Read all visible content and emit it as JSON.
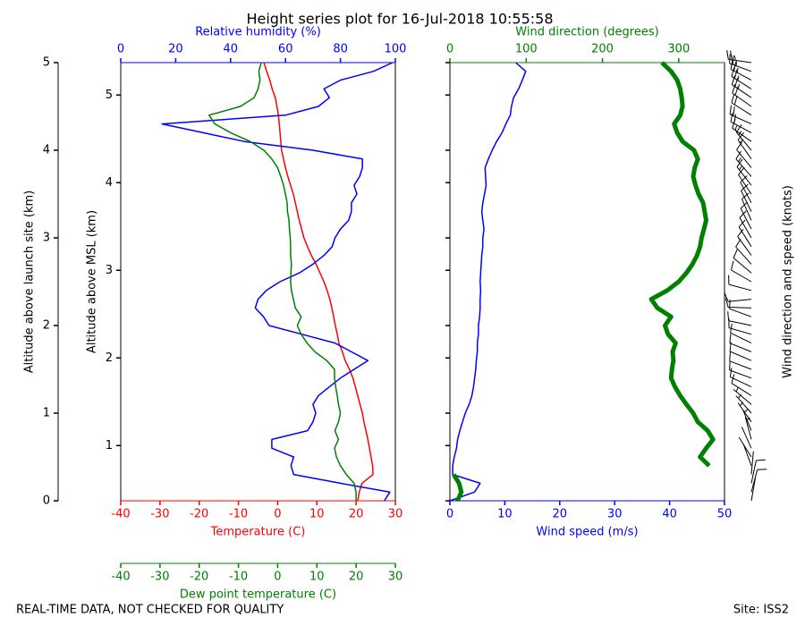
{
  "page": {
    "title": "Height series plot for 16-Jul-2018 10:55:58",
    "footer_left": "REAL-TIME DATA, NOT CHECKED FOR QUALITY",
    "footer_right": "Site: ISS2"
  },
  "chart_data": [
    {
      "type": "line",
      "y_label": "Altitude above launch site (km)",
      "ylim": [
        0,
        5
      ],
      "yticks": [
        0,
        1,
        2,
        3,
        4,
        5
      ],
      "y2_label": "Altitude above MSL (km)",
      "y2lim": [
        0.37,
        5.37
      ],
      "y2ticks": [
        1,
        2,
        3,
        4,
        5
      ],
      "x_label": "Temperature (C)",
      "xlim": [
        -40,
        30
      ],
      "xticks": [
        -40,
        -30,
        -20,
        -10,
        0,
        10,
        20,
        30
      ],
      "x2_label": "Relative humidity (%)",
      "x2lim": [
        0,
        100
      ],
      "x2ticks": [
        0,
        20,
        40,
        60,
        80,
        100
      ],
      "x3_label": "Dew point temperature (C)",
      "x3lim": [
        -40,
        30
      ],
      "x3ticks": [
        -40,
        -30,
        -20,
        -10,
        0,
        10,
        20,
        30
      ],
      "altitude": [
        0,
        0.1,
        0.2,
        0.3,
        0.4,
        0.5,
        0.6,
        0.7,
        0.8,
        0.9,
        1.0,
        1.1,
        1.2,
        1.3,
        1.4,
        1.5,
        1.6,
        1.7,
        1.8,
        1.9,
        2.0,
        2.1,
        2.2,
        2.3,
        2.4,
        2.5,
        2.6,
        2.7,
        2.8,
        2.9,
        3.0,
        3.1,
        3.2,
        3.3,
        3.4,
        3.5,
        3.6,
        3.7,
        3.8,
        3.9,
        4.0,
        4.1,
        4.2,
        4.3,
        4.4,
        4.5,
        4.6,
        4.7,
        4.8,
        4.9,
        5.0
      ],
      "series": [
        {
          "axis": "x",
          "color": "#ff0000",
          "values": [
            20.4,
            20.8,
            21.5,
            24.3,
            24.2,
            23.8,
            23.4,
            23,
            22.5,
            22,
            21.6,
            21,
            20.4,
            19.8,
            19.2,
            18.3,
            17.2,
            16.5,
            15.6,
            15.2,
            14.7,
            14.3,
            13.8,
            13.3,
            12.6,
            11.8,
            10.8,
            9.8,
            8.6,
            7.6,
            6.7,
            6.1,
            5.5,
            5,
            4.5,
            4,
            3.3,
            2.6,
            2,
            1.5,
            1,
            0.8,
            0.6,
            0.4,
            0.2,
            -0.2,
            -0.6,
            -1.4,
            -2,
            -2.8,
            -3.5
          ]
        },
        {
          "axis": "x2",
          "color": "#0000ff",
          "values": [
            96,
            98,
            80,
            63,
            62,
            63,
            55,
            55,
            68,
            70,
            71,
            70,
            72,
            76,
            80,
            85,
            90,
            84,
            78,
            66,
            54,
            52,
            49,
            50,
            53,
            58,
            65,
            70,
            74,
            77,
            78,
            80,
            83,
            84,
            84,
            86,
            85,
            87,
            88,
            88,
            70,
            45,
            30,
            15,
            60,
            72,
            76,
            74,
            80,
            92,
            99
          ]
        },
        {
          "axis": "x3",
          "color": "#008000",
          "values": [
            20,
            20,
            19.5,
            17.5,
            16,
            15,
            14.5,
            15.5,
            14.6,
            15.5,
            16,
            15.5,
            15.2,
            14.8,
            14.5,
            14.5,
            12.5,
            9.5,
            7.5,
            6,
            5,
            6,
            4.5,
            4,
            3.5,
            3.3,
            3.4,
            3.5,
            3.3,
            3.3,
            3.2,
            3,
            2.9,
            2.5,
            2.4,
            2,
            1.5,
            0.8,
            0,
            -1.5,
            -3.5,
            -7,
            -12,
            -16,
            -17.5,
            -9.5,
            -6,
            -5,
            -4.5,
            -4.8,
            -4.2
          ]
        }
      ]
    },
    {
      "type": "line",
      "ylim": [
        0,
        5
      ],
      "yticks": [
        0,
        1,
        2,
        3,
        4,
        5
      ],
      "y2lim": [
        0.37,
        5.37
      ],
      "y2ticks": [
        1,
        2,
        3,
        4,
        5
      ],
      "x_label": "Wind speed (m/s)",
      "xlim": [
        0,
        50
      ],
      "xticks": [
        0,
        10,
        20,
        30,
        40,
        50
      ],
      "x2_label": "Wind direction (degrees)",
      "x2lim": [
        0,
        360
      ],
      "x2ticks": [
        0,
        100,
        200,
        300
      ],
      "barbs_label": "Wind direction and speed (knots)",
      "altitude": [
        0,
        0.1,
        0.2,
        0.3,
        0.4,
        0.5,
        0.6,
        0.7,
        0.8,
        0.9,
        1.0,
        1.1,
        1.2,
        1.3,
        1.4,
        1.5,
        1.6,
        1.7,
        1.8,
        1.9,
        2.0,
        2.1,
        2.2,
        2.3,
        2.4,
        2.5,
        2.6,
        2.7,
        2.8,
        2.9,
        3.0,
        3.1,
        3.2,
        3.3,
        3.4,
        3.5,
        3.6,
        3.7,
        3.8,
        3.9,
        4.0,
        4.1,
        4.2,
        4.3,
        4.4,
        4.5,
        4.6,
        4.7,
        4.8,
        4.9,
        5.0
      ],
      "series": [
        {
          "axis": "x",
          "color": "#0000ff",
          "line_width": 1.5,
          "values": [
            0,
            4.5,
            5.5,
            0.5,
            0.5,
            0.8,
            1.2,
            1.4,
            1.8,
            2.3,
            2.8,
            3.5,
            4,
            4.3,
            4.5,
            4.7,
            4.8,
            5,
            5,
            5.2,
            5.2,
            5.4,
            5.5,
            5.5,
            5.6,
            5.5,
            5.6,
            5.7,
            5.8,
            6,
            6,
            6.2,
            6,
            5.8,
            6,
            6.3,
            6.6,
            6.5,
            6.4,
            7,
            7.7,
            8.5,
            9.5,
            10.2,
            11,
            11.2,
            11.6,
            12.5,
            13.2,
            13.8,
            12
          ]
        },
        {
          "axis": "x2",
          "color": "#008000",
          "line_width": 5,
          "values": [
            10,
            15,
            12,
            5,
            340,
            328,
            336,
            345,
            338,
            325,
            319,
            310,
            302,
            295,
            290,
            291,
            293,
            292,
            296,
            286,
            282,
            290,
            272,
            264,
            285,
            300,
            310,
            318,
            324,
            328,
            330,
            333,
            336,
            334,
            332,
            326,
            322,
            319,
            321,
            325,
            320,
            305,
            298,
            294,
            302,
            305,
            304,
            302,
            298,
            290,
            278
          ]
        }
      ]
    }
  ]
}
